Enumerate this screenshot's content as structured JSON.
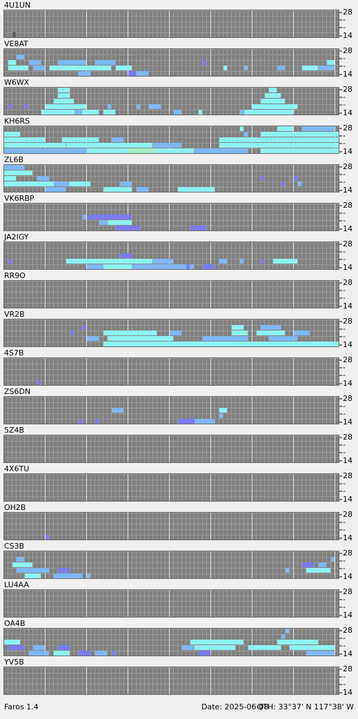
{
  "levels": {
    "0": "#5e5e5e",
    "1": "#7b7bf0",
    "2": "#7fb8f4",
    "3": "#8ff2f2",
    "4": "#a6f0c6"
  },
  "band_labels": [
    "28",
    "-",
    "-",
    "14"
  ],
  "footer": {
    "app": "Faros 1.4",
    "date": "Date: 2025-06-08",
    "qth": "QTH: 33°37' N  117°38' W"
  },
  "stations": [
    {
      "name": "4U1UN",
      "runs": [
        [
          4,
          2,
          2,
          0
        ]
      ]
    },
    {
      "name": "VE8AT",
      "runs": [
        [
          1,
          3,
          4,
          2
        ],
        [
          2,
          1,
          2,
          3
        ],
        [
          2,
          6,
          8,
          2
        ],
        [
          2,
          13,
          19,
          2
        ],
        [
          3,
          1,
          5,
          3
        ],
        [
          3,
          7,
          9,
          2
        ],
        [
          3,
          11,
          25,
          3
        ],
        [
          2,
          22,
          26,
          2
        ],
        [
          3,
          27,
          30,
          3
        ],
        [
          4,
          18,
          20,
          2
        ],
        [
          4,
          32,
          34,
          2
        ],
        [
          2,
          48,
          48,
          1
        ],
        [
          3,
          53,
          53,
          3
        ],
        [
          3,
          58,
          58,
          2
        ],
        [
          3,
          66,
          67,
          2
        ],
        [
          3,
          72,
          75,
          3
        ],
        [
          2,
          78,
          79,
          3
        ],
        [
          3,
          76,
          79,
          2
        ],
        [
          4,
          30,
          31,
          1
        ]
      ]
    },
    {
      "name": "W6WX",
      "runs": [
        [
          0,
          13,
          15,
          3
        ],
        [
          1,
          13,
          15,
          3
        ],
        [
          2,
          12,
          16,
          3
        ],
        [
          3,
          10,
          19,
          3
        ],
        [
          4,
          9,
          22,
          3
        ],
        [
          3,
          1,
          1,
          1
        ],
        [
          3,
          5,
          5,
          1
        ],
        [
          4,
          17,
          18,
          2
        ],
        [
          3,
          25,
          25,
          2
        ],
        [
          4,
          24,
          26,
          3
        ],
        [
          3,
          32,
          32,
          2
        ],
        [
          3,
          35,
          37,
          2
        ],
        [
          4,
          41,
          42,
          2
        ],
        [
          4,
          47,
          47,
          3
        ],
        [
          4,
          57,
          57,
          2
        ],
        [
          0,
          64,
          65,
          3
        ],
        [
          1,
          63,
          66,
          3
        ],
        [
          2,
          62,
          67,
          3
        ],
        [
          3,
          60,
          70,
          3
        ],
        [
          4,
          58,
          69,
          3
        ]
      ]
    },
    {
      "name": "KH6RS",
      "runs": [
        [
          1,
          0,
          3,
          3
        ],
        [
          2,
          0,
          9,
          3
        ],
        [
          3,
          0,
          14,
          3
        ],
        [
          4,
          0,
          20,
          2
        ],
        [
          2,
          14,
          22,
          3
        ],
        [
          3,
          15,
          35,
          3
        ],
        [
          4,
          20,
          45,
          3
        ],
        [
          3,
          36,
          42,
          2
        ],
        [
          4,
          46,
          50,
          2
        ],
        [
          2,
          26,
          28,
          2
        ],
        [
          1,
          58,
          58,
          2
        ],
        [
          0,
          57,
          57,
          3
        ],
        [
          1,
          62,
          80,
          3
        ],
        [
          2,
          52,
          80,
          3
        ],
        [
          3,
          52,
          80,
          3
        ],
        [
          4,
          50,
          58,
          2
        ],
        [
          4,
          62,
          80,
          3
        ],
        [
          0,
          66,
          69,
          3
        ],
        [
          0,
          72,
          79,
          2
        ],
        [
          4,
          30,
          36,
          4
        ]
      ]
    },
    {
      "name": "ZL6B",
      "runs": [
        [
          0,
          0,
          4,
          2
        ],
        [
          1,
          0,
          6,
          3
        ],
        [
          2,
          0,
          2,
          3
        ],
        [
          3,
          0,
          20,
          3
        ],
        [
          3,
          12,
          15,
          2
        ],
        [
          2,
          8,
          10,
          2
        ],
        [
          4,
          10,
          14,
          2
        ],
        [
          4,
          24,
          30,
          3
        ],
        [
          3,
          28,
          30,
          2
        ],
        [
          4,
          32,
          34,
          2
        ],
        [
          4,
          42,
          50,
          3
        ],
        [
          2,
          62,
          62,
          1
        ],
        [
          3,
          67,
          67,
          1
        ],
        [
          3,
          71,
          71,
          2
        ],
        [
          2,
          70,
          70,
          1
        ]
      ]
    },
    {
      "name": "VK6RBP",
      "runs": [
        [
          2,
          19,
          19,
          2
        ],
        [
          2,
          20,
          30,
          1
        ],
        [
          3,
          25,
          30,
          3
        ],
        [
          4,
          27,
          32,
          1
        ],
        [
          4,
          45,
          48,
          1
        ],
        [
          3,
          23,
          24,
          2
        ]
      ]
    },
    {
      "name": "JA2IGY",
      "runs": [
        [
          3,
          1,
          1,
          1
        ],
        [
          3,
          15,
          35,
          3
        ],
        [
          4,
          20,
          45,
          2
        ],
        [
          2,
          28,
          30,
          1
        ],
        [
          3,
          36,
          40,
          2
        ],
        [
          4,
          44,
          44,
          1
        ],
        [
          4,
          48,
          50,
          1
        ],
        [
          3,
          52,
          53,
          2
        ],
        [
          3,
          57,
          57,
          2
        ],
        [
          3,
          62,
          62,
          1
        ],
        [
          3,
          65,
          70,
          3
        ],
        [
          4,
          24,
          30,
          3
        ]
      ]
    },
    {
      "name": "RR9O",
      "runs": []
    },
    {
      "name": "VR2B",
      "runs": [
        [
          1,
          19,
          19,
          1
        ],
        [
          2,
          16,
          16,
          1
        ],
        [
          2,
          24,
          36,
          3
        ],
        [
          3,
          25,
          40,
          3
        ],
        [
          4,
          24,
          80,
          3
        ],
        [
          3,
          48,
          58,
          2
        ],
        [
          2,
          55,
          58,
          3
        ],
        [
          1,
          55,
          57,
          3
        ],
        [
          2,
          61,
          67,
          3
        ],
        [
          1,
          62,
          66,
          2
        ],
        [
          2,
          70,
          73,
          2
        ],
        [
          3,
          20,
          22,
          2
        ],
        [
          2,
          40,
          42,
          2
        ],
        [
          3,
          64,
          70,
          2
        ]
      ]
    },
    {
      "name": "4S7B",
      "runs": [
        [
          4,
          8,
          8,
          1
        ]
      ]
    },
    {
      "name": "ZS6DN",
      "runs": [
        [
          2,
          26,
          28,
          2
        ],
        [
          4,
          18,
          18,
          1
        ],
        [
          4,
          22,
          22,
          1
        ],
        [
          4,
          42,
          48,
          1
        ],
        [
          4,
          46,
          50,
          2
        ],
        [
          2,
          52,
          53,
          3
        ],
        [
          3,
          52,
          52,
          2
        ]
      ]
    },
    {
      "name": "5Z4B",
      "runs": []
    },
    {
      "name": "4X6TU",
      "runs": []
    },
    {
      "name": "OH2B",
      "runs": [
        [
          4,
          10,
          10,
          1
        ]
      ]
    },
    {
      "name": "CS3B",
      "runs": [
        [
          1,
          3,
          4,
          2
        ],
        [
          2,
          2,
          6,
          3
        ],
        [
          3,
          3,
          10,
          2
        ],
        [
          4,
          5,
          8,
          3
        ],
        [
          3,
          13,
          14,
          1
        ],
        [
          4,
          12,
          18,
          2
        ],
        [
          3,
          15,
          15,
          1
        ],
        [
          4,
          20,
          20,
          2
        ],
        [
          2,
          72,
          74,
          1
        ],
        [
          3,
          73,
          78,
          3
        ],
        [
          2,
          76,
          77,
          2
        ],
        [
          3,
          68,
          68,
          2
        ],
        [
          1,
          79,
          79,
          2
        ]
      ]
    },
    {
      "name": "LU4AA",
      "runs": []
    },
    {
      "name": "OA4B",
      "runs": [
        [
          2,
          0,
          3,
          3
        ],
        [
          3,
          1,
          4,
          1
        ],
        [
          3,
          7,
          9,
          2
        ],
        [
          4,
          6,
          10,
          2
        ],
        [
          3,
          13,
          15,
          1
        ],
        [
          4,
          12,
          15,
          3
        ],
        [
          4,
          18,
          20,
          1
        ],
        [
          4,
          22,
          24,
          2
        ],
        [
          4,
          26,
          26,
          1
        ],
        [
          3,
          43,
          45,
          2
        ],
        [
          2,
          45,
          57,
          3
        ],
        [
          3,
          46,
          55,
          3
        ],
        [
          4,
          47,
          49,
          1
        ],
        [
          3,
          59,
          66,
          3
        ],
        [
          1,
          67,
          67,
          2
        ],
        [
          0,
          68,
          68,
          2
        ],
        [
          2,
          66,
          75,
          3
        ],
        [
          3,
          69,
          79,
          3
        ],
        [
          4,
          73,
          79,
          2
        ]
      ]
    },
    {
      "name": "YV5B",
      "runs": []
    }
  ]
}
